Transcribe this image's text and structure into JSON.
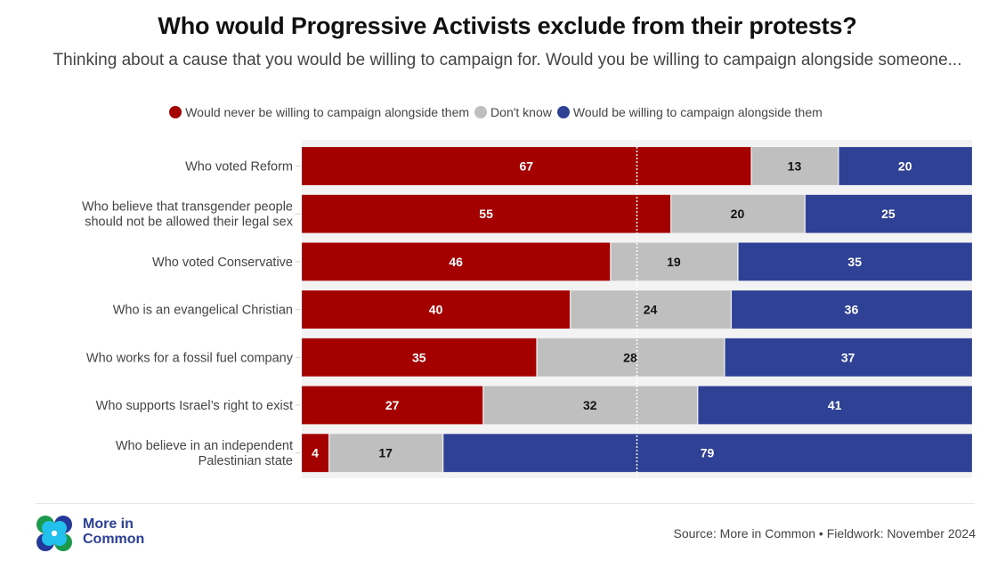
{
  "header": {
    "title": "Who would Progressive Activists exclude from their protests?",
    "subtitle": "Thinking about a cause that you would be willing to campaign for. Would you be willing to campaign alongside someone..."
  },
  "legend": [
    {
      "label": "Would never be willing to campaign alongside them",
      "color": "#a40000"
    },
    {
      "label": "Don't know",
      "color": "#bfbfbf"
    },
    {
      "label": "Would be willing to campaign alongside them",
      "color": "#2f4195"
    }
  ],
  "chart_data": {
    "type": "bar",
    "orientation": "horizontal",
    "stacked": true,
    "title": "Who would Progressive Activists exclude from their protests?",
    "subtitle": "Thinking about a cause that you would be willing to campaign for. Would you be willing to campaign alongside someone...",
    "xlabel": "",
    "ylabel": "",
    "xlim": [
      0,
      100
    ],
    "reference_line": 50,
    "legend_position": "top-center",
    "categories": [
      "Who voted Reform",
      "Who believe that transgender people should not be allowed their legal sex",
      "Who voted Conservative",
      "Who is an evangelical Christian",
      "Who works for a fossil fuel company",
      "Who supports Israel’s right to exist",
      "Who believe in an independent Palestinian state"
    ],
    "category_lines": [
      [
        "Who voted Reform"
      ],
      [
        "Who believe that transgender people",
        "should not be allowed their legal sex"
      ],
      [
        "Who voted Conservative"
      ],
      [
        "Who is an evangelical Christian"
      ],
      [
        "Who works for a fossil fuel company"
      ],
      [
        "Who supports Israel’s right to exist"
      ],
      [
        "Who believe in an independent",
        "Palestinian state"
      ]
    ],
    "series": [
      {
        "name": "Would never be willing to campaign alongside them",
        "color": "#a40000",
        "label_color": "#ffffff",
        "values": [
          67,
          55,
          46,
          40,
          35,
          27,
          4
        ]
      },
      {
        "name": "Don't know",
        "color": "#bfbfbf",
        "label_color": "#111111",
        "values": [
          13,
          20,
          19,
          24,
          28,
          32,
          17
        ]
      },
      {
        "name": "Would be willing to campaign alongside them",
        "color": "#2f4195",
        "label_color": "#ffffff",
        "values": [
          20,
          25,
          35,
          36,
          37,
          41,
          79
        ]
      }
    ]
  },
  "footer": {
    "logo_line1": "More in",
    "logo_line2": "Common",
    "source": "Source: More in Common • Fieldwork: November 2024"
  }
}
